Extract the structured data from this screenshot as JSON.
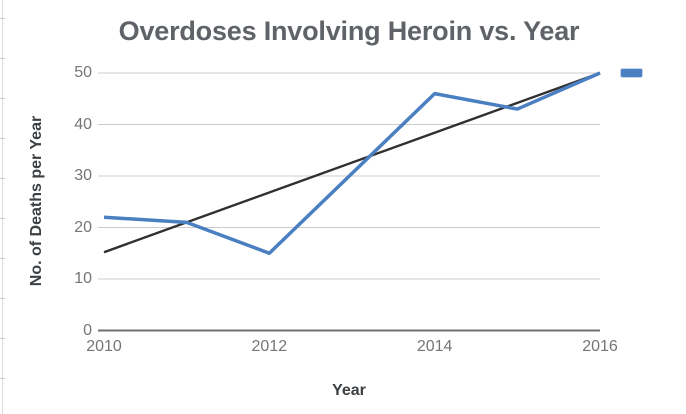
{
  "chart_data": {
    "type": "line",
    "title": "Overdoses Involving Heroin vs. Year",
    "xlabel": "Year",
    "ylabel": "No. of Deaths per Year",
    "xlim": [
      2010,
      2016
    ],
    "ylim": [
      0,
      50
    ],
    "x_ticks": [
      "2010",
      "2012",
      "2014",
      "2016"
    ],
    "x_tick_years": [
      2010,
      2012,
      2014,
      2016
    ],
    "y_ticks": [
      0,
      10,
      20,
      30,
      40,
      50
    ],
    "grid": "horizontal",
    "legend": {
      "position": "right",
      "swatch_color": "#4a7fc1",
      "label_visible": false
    },
    "series": [
      {
        "id": "deaths-line",
        "color": "#4a7fc1",
        "width": 3.5,
        "points": [
          {
            "x": 2010,
            "y": 22
          },
          {
            "x": 2011,
            "y": 21
          },
          {
            "x": 2012,
            "y": 15
          },
          {
            "x": 2014,
            "y": 46
          },
          {
            "x": 2015,
            "y": 43
          },
          {
            "x": 2016,
            "y": 50
          }
        ]
      },
      {
        "id": "trendline",
        "color": "#303030",
        "width": 2.4,
        "points": [
          {
            "x": 2010,
            "y": 15.2
          },
          {
            "x": 2016,
            "y": 50
          }
        ]
      }
    ],
    "colors": {
      "title": "#5f6368",
      "tick_label": "#757575",
      "axis_title": "#3c4043",
      "gridline": "#cccccc",
      "baseline": "#6f6f6f",
      "background": "#ffffff"
    }
  }
}
